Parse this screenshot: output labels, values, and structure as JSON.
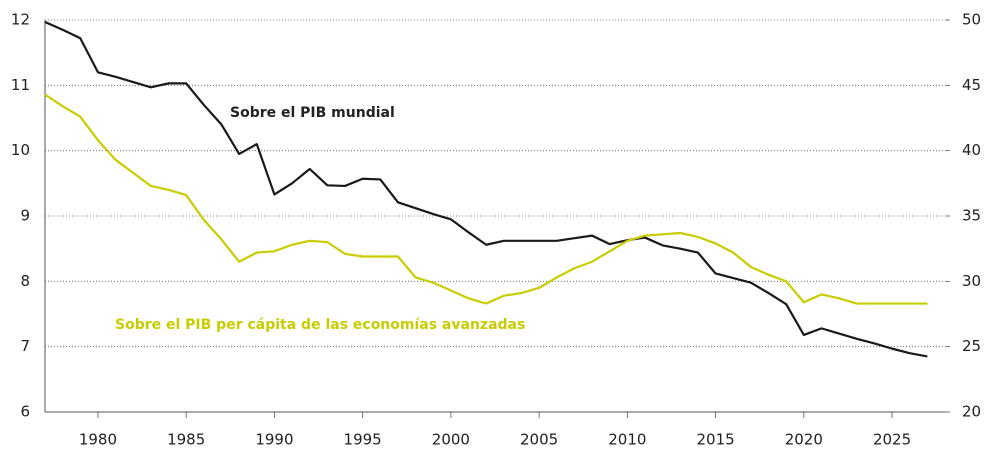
{
  "chart_data": {
    "type": "line",
    "x": [
      1977,
      1978,
      1979,
      1980,
      1981,
      1982,
      1983,
      1984,
      1985,
      1986,
      1987,
      1988,
      1989,
      1990,
      1991,
      1992,
      1993,
      1994,
      1995,
      1996,
      1997,
      1998,
      1999,
      2000,
      2001,
      2002,
      2003,
      2004,
      2005,
      2006,
      2007,
      2008,
      2009,
      2010,
      2011,
      2012,
      2013,
      2014,
      2015,
      2016,
      2017,
      2018,
      2019,
      2020,
      2021,
      2022,
      2023,
      2024,
      2025,
      2026,
      2027
    ],
    "series": [
      {
        "name": "Sobre el PIB mundial",
        "color": "#1a1a1a",
        "axis": "y",
        "values": [
          11.97,
          11.85,
          11.72,
          11.2,
          11.13,
          11.05,
          10.97,
          11.03,
          11.03,
          10.7,
          10.4,
          9.95,
          10.1,
          9.33,
          9.5,
          9.72,
          9.47,
          9.46,
          9.57,
          9.56,
          9.21,
          9.12,
          9.03,
          8.95,
          8.75,
          8.56,
          8.62,
          8.62,
          8.62,
          8.62,
          8.66,
          8.7,
          8.57,
          8.63,
          8.67,
          8.55,
          8.5,
          8.44,
          8.12,
          8.05,
          7.98,
          7.82,
          7.65,
          7.18,
          7.28,
          7.2,
          7.12,
          7.05,
          6.97,
          6.9,
          6.85
        ]
      },
      {
        "name": "Sobre el PIB per cápita de las economías avanzadas",
        "color": "#c8cc00",
        "axis": "y2",
        "values": [
          44.3,
          43.4,
          42.6,
          40.8,
          39.3,
          38.3,
          37.3,
          37.0,
          36.6,
          34.7,
          33.2,
          31.5,
          32.2,
          32.3,
          32.8,
          33.1,
          33.0,
          32.1,
          31.9,
          31.9,
          31.9,
          30.3,
          29.9,
          29.3,
          28.7,
          28.3,
          28.9,
          29.1,
          29.5,
          30.3,
          31.0,
          31.5,
          32.3,
          33.1,
          33.5,
          33.6,
          33.7,
          33.4,
          32.9,
          32.2,
          31.1,
          30.5,
          30.0,
          28.4,
          29.0,
          28.7,
          28.3,
          28.3,
          28.3,
          28.3,
          28.3
        ]
      }
    ],
    "annotations": [
      "Sobre el PIB mundial",
      "Sobre el PIB per cápita de las economías avanzadas"
    ],
    "xlim": [
      1977,
      2028
    ],
    "xticks": [
      1980,
      1985,
      1990,
      1995,
      2000,
      2005,
      2010,
      2015,
      2020,
      2025
    ],
    "ylim": [
      6,
      12
    ],
    "yticks": [
      6,
      7,
      8,
      9,
      10,
      11,
      12
    ],
    "y2lim": [
      20,
      50
    ],
    "y2ticks": [
      20,
      25,
      30,
      35,
      40,
      45,
      50
    ],
    "grid": true
  }
}
